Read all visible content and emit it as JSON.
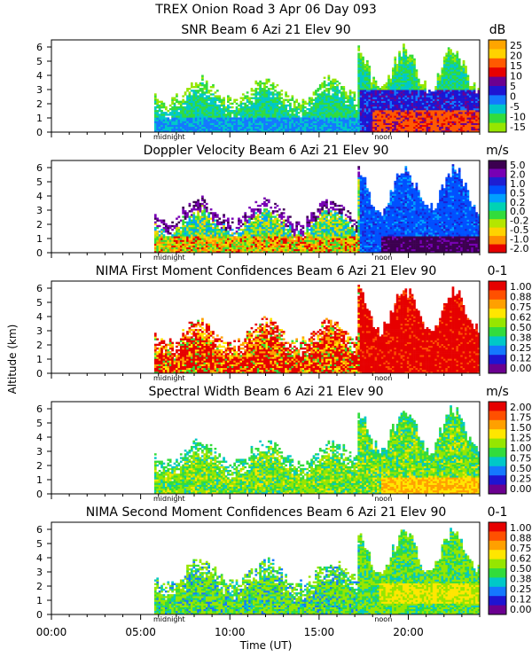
{
  "title_line1": "TREX Onion Road    3 Apr 06 Day 093",
  "y_axis_label": "Altitude (km)",
  "x_axis_label": "Time (UT)",
  "x_ticks": [
    "00:00",
    "05:00",
    "10:00",
    "15:00",
    "20:00"
  ],
  "y_ticks": [
    "0",
    "1",
    "2",
    "3",
    "4",
    "5",
    "6"
  ],
  "markers": {
    "midnight": "midnight",
    "noon": "noon"
  },
  "chart_data": [
    {
      "type": "heatmap",
      "title": "SNR Beam 6 Azi  21 Elev 90",
      "units": "dB",
      "colorbar_labels": [
        "25",
        "20",
        "15",
        "10",
        "5",
        "0",
        "-5",
        "-10",
        "-15"
      ],
      "colors": [
        "#ffa500",
        "#ffd200",
        "#ff5a00",
        "#e60000",
        "#6b0090",
        "#1e14d2",
        "#1478ff",
        "#00c8c8",
        "#32dc3c",
        "#96e600"
      ],
      "xlim": [
        0,
        24
      ],
      "ylim": [
        0,
        6.5
      ],
      "xlabel": "Time (UT)",
      "ylabel": "Altitude (km)"
    },
    {
      "type": "heatmap",
      "title": "Doppler Velocity Beam 6 Azi  21 Elev 90",
      "units": "m/s",
      "colorbar_labels": [
        "5.0",
        "2.0",
        "1.0",
        "0.5",
        "0.2",
        "0.0",
        "-0.2",
        "-0.5",
        "-1.0",
        "-2.0"
      ],
      "colors": [
        "#3c0050",
        "#7800b4",
        "#1e1ed2",
        "#0050ff",
        "#00a0ff",
        "#00d2b4",
        "#32dc3c",
        "#b4e600",
        "#ffd200",
        "#ff8c00",
        "#e60000"
      ],
      "xlim": [
        0,
        24
      ],
      "ylim": [
        0,
        6.5
      ],
      "xlabel": "Time (UT)",
      "ylabel": "Altitude (km)"
    },
    {
      "type": "heatmap",
      "title": "NIMA First Moment Confidences Beam 6 Azi  21 Elev 90",
      "units": "0-1",
      "colorbar_labels": [
        "1.00",
        "0.88",
        "0.75",
        "0.62",
        "0.50",
        "0.38",
        "0.25",
        "0.12",
        "0.00"
      ],
      "colors": [
        "#e60000",
        "#ff5000",
        "#ffa000",
        "#ffe600",
        "#96e600",
        "#32dc3c",
        "#00c8c8",
        "#1478ff",
        "#1e14d2",
        "#6b0090"
      ],
      "xlim": [
        0,
        24
      ],
      "ylim": [
        0,
        6.5
      ],
      "xlabel": "Time (UT)",
      "ylabel": "Altitude (km)"
    },
    {
      "type": "heatmap",
      "title": "Spectral Width Beam 6 Azi  21 Elev 90",
      "units": "m/s",
      "colorbar_labels": [
        "2.00",
        "1.75",
        "1.50",
        "1.25",
        "1.00",
        "0.75",
        "0.50",
        "0.25",
        "0.00"
      ],
      "colors": [
        "#e60000",
        "#ff5000",
        "#ffa000",
        "#ffe600",
        "#96e600",
        "#32dc3c",
        "#00c8c8",
        "#1478ff",
        "#1e14d2",
        "#6b0090"
      ],
      "xlim": [
        0,
        24
      ],
      "ylim": [
        0,
        6.5
      ],
      "xlabel": "Time (UT)",
      "ylabel": "Altitude (km)"
    },
    {
      "type": "heatmap",
      "title": "NIMA Second Moment Confidences Beam 6 Azi  21 Elev 90",
      "units": "0-1",
      "colorbar_labels": [
        "1.00",
        "0.88",
        "0.75",
        "0.62",
        "0.50",
        "0.38",
        "0.25",
        "0.12",
        "0.00"
      ],
      "colors": [
        "#e60000",
        "#ff5000",
        "#ffa000",
        "#ffe600",
        "#96e600",
        "#32dc3c",
        "#00c8c8",
        "#1478ff",
        "#1e14d2",
        "#6b0090"
      ],
      "xlim": [
        0,
        24
      ],
      "ylim": [
        0,
        6.5
      ],
      "xlabel": "Time (UT)",
      "ylabel": "Altitude (km)"
    }
  ]
}
